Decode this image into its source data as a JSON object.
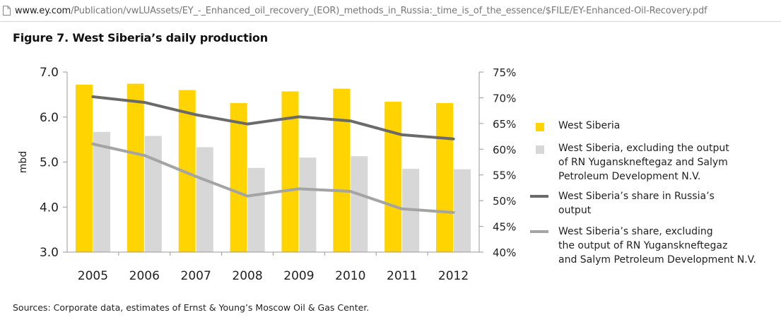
{
  "browser": {
    "url_domain": "www.ey.com",
    "url_path": "/Publication/vwLUAssets/EY_-_Enhanced_oil_recovery_(EOR)_methods_in_Russia:_time_is_of_the_essence/$FILE/EY-Enhanced-Oil-Recovery.pdf"
  },
  "figure": {
    "title": "Figure 7. West Siberia’s daily production",
    "source": "Sources: Corporate data, estimates of Ernst & Young’s Moscow Oil & Gas Center."
  },
  "colors": {
    "west_siberia": "#FFD400",
    "excluding": "#D7D7D7",
    "share": "#6A6A6A",
    "share_excl": "#A4A4A4",
    "axis": "#999999"
  },
  "chart_data": {
    "type": "bar",
    "categories": [
      "2005",
      "2006",
      "2007",
      "2008",
      "2009",
      "2010",
      "2011",
      "2012"
    ],
    "ylabel": "mbd",
    "ylim": [
      3.0,
      7.0
    ],
    "yticks": [
      "3.0",
      "4.0",
      "5.0",
      "6.0",
      "7.0"
    ],
    "y2lim": [
      40,
      75
    ],
    "y2ticks": [
      "40%",
      "45%",
      "50%",
      "55%",
      "60%",
      "65%",
      "70%",
      "75%"
    ],
    "series": [
      {
        "name": "West Siberia",
        "type": "bar",
        "axis": "left",
        "values": [
          6.72,
          6.74,
          6.6,
          6.31,
          6.57,
          6.63,
          6.34,
          6.31
        ]
      },
      {
        "name": "West Siberia, excluding the output\nof RN Yuganskneftegaz and Salym\nPetroleum Development N.V.",
        "type": "bar",
        "axis": "left",
        "values": [
          5.67,
          5.58,
          5.33,
          4.87,
          5.1,
          5.13,
          4.85,
          4.84
        ]
      },
      {
        "name": "West Siberia’s share in Russia’s\noutput",
        "type": "line",
        "axis": "right",
        "values": [
          70.2,
          69.1,
          66.7,
          64.9,
          66.3,
          65.5,
          62.8,
          62.0
        ]
      },
      {
        "name": "West Siberia’s share, excluding\nthe output of RN Yuganskneftegaz\nand Salym Petroleum Development N.V.",
        "type": "line",
        "axis": "right",
        "values": [
          61.0,
          58.8,
          54.7,
          50.9,
          52.3,
          51.8,
          48.4,
          47.7
        ]
      }
    ],
    "legend_position": "right"
  }
}
